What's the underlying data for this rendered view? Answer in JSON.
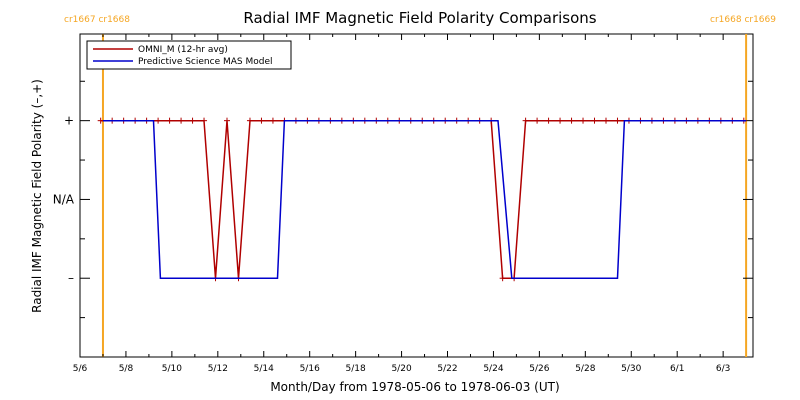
{
  "chart_data": {
    "type": "line",
    "title": "Radial IMF Magnetic Field Polarity Comparisons",
    "xlabel": "Month/Day from 1978-05-06 to 1978-06-03 (UT)",
    "ylabel": "Radial IMF Magnetic Field Polarity (–,+)",
    "xlim": [
      0,
      29.3
    ],
    "ylim": [
      -2,
      2.1
    ],
    "x_ticks": [
      {
        "x": 0,
        "label": "5/6"
      },
      {
        "x": 2,
        "label": "5/8"
      },
      {
        "x": 4,
        "label": "5/10"
      },
      {
        "x": 6,
        "label": "5/12"
      },
      {
        "x": 8,
        "label": "5/14"
      },
      {
        "x": 10,
        "label": "5/16"
      },
      {
        "x": 12,
        "label": "5/18"
      },
      {
        "x": 14,
        "label": "5/20"
      },
      {
        "x": 16,
        "label": "5/22"
      },
      {
        "x": 18,
        "label": "5/24"
      },
      {
        "x": 20,
        "label": "5/26"
      },
      {
        "x": 22,
        "label": "5/28"
      },
      {
        "x": 24,
        "label": "5/30"
      },
      {
        "x": 26,
        "label": "6/1"
      },
      {
        "x": 28,
        "label": "6/3"
      }
    ],
    "y_ticks": [
      {
        "y": 1,
        "label": "+"
      },
      {
        "y": 0,
        "label": "N/A"
      },
      {
        "y": -1,
        "label": "–"
      }
    ],
    "carrington_markers": [
      {
        "x": 1.0,
        "labels": [
          "cr1667",
          "cr1668"
        ],
        "color": "#f5a623"
      },
      {
        "x": 29.0,
        "labels": [
          "cr1668",
          "cr1669"
        ],
        "color": "#f5a623"
      }
    ],
    "series": [
      {
        "name": "OMNI_M (12-hr avg)",
        "color": "#b00000",
        "marker": "+",
        "x": [
          0.9,
          1.4,
          1.9,
          2.4,
          2.9,
          3.4,
          3.9,
          4.4,
          4.9,
          5.4,
          5.9,
          6.4,
          6.9,
          7.4,
          7.9,
          8.4,
          8.9,
          9.4,
          9.9,
          10.4,
          10.9,
          11.4,
          11.9,
          12.4,
          12.9,
          13.4,
          13.9,
          14.4,
          14.9,
          15.4,
          15.9,
          16.4,
          16.9,
          17.4,
          17.9,
          18.4,
          18.9,
          19.4,
          19.9,
          20.4,
          20.9,
          21.4,
          21.9,
          22.4,
          22.9,
          23.4,
          23.9,
          24.4,
          24.9,
          25.4,
          25.9,
          26.4,
          26.9,
          27.4,
          27.9,
          28.4,
          28.9
        ],
        "y": [
          1,
          1,
          1,
          1,
          1,
          1,
          1,
          1,
          1,
          1,
          -1,
          1,
          -1,
          1,
          1,
          1,
          1,
          1,
          1,
          1,
          1,
          1,
          1,
          1,
          1,
          1,
          1,
          1,
          1,
          1,
          1,
          1,
          1,
          1,
          1,
          -1,
          -1,
          1,
          1,
          1,
          1,
          1,
          1,
          1,
          1,
          1,
          1,
          1,
          1,
          1,
          1,
          1,
          1,
          1,
          1,
          1,
          1
        ]
      },
      {
        "name": "Predictive Science MAS Model",
        "color": "#0000cc",
        "x": [
          1.0,
          3.2,
          3.5,
          8.6,
          8.9,
          18.2,
          18.8,
          23.4,
          23.7,
          29.0
        ],
        "y": [
          1,
          1,
          -1,
          -1,
          1,
          1,
          -1,
          -1,
          1,
          1
        ]
      }
    ],
    "legend": "top-left",
    "grid": false
  }
}
